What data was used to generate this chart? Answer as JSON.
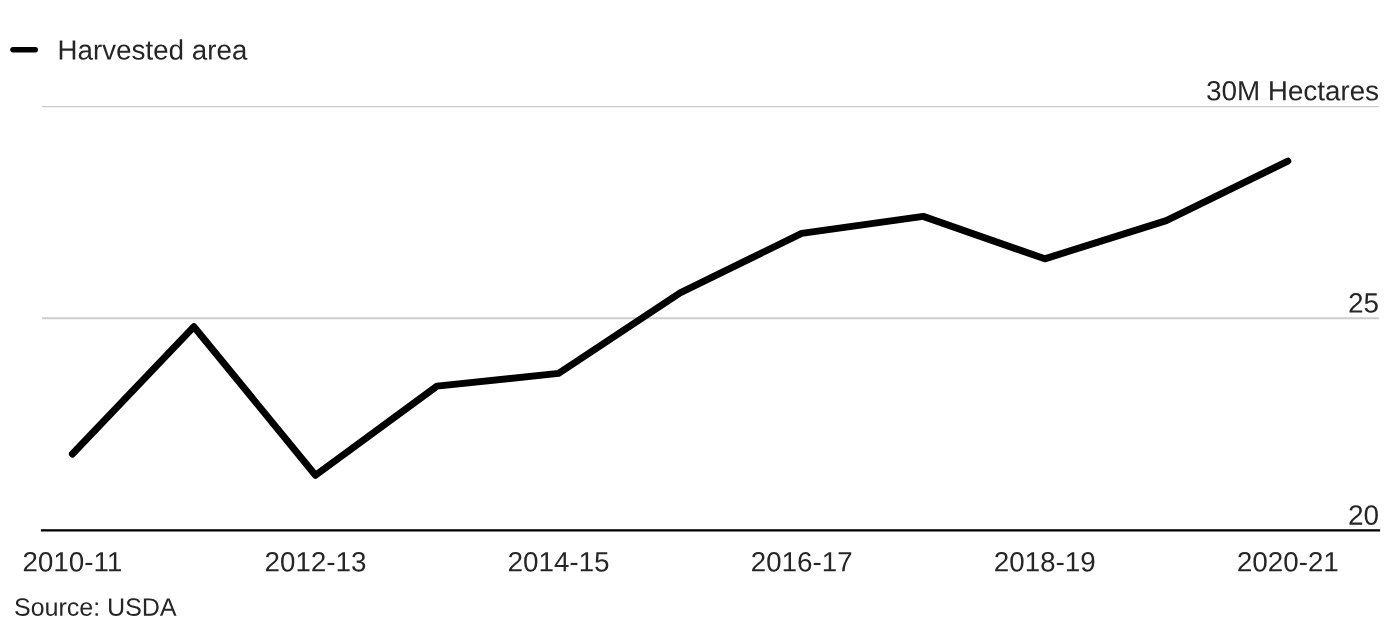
{
  "chart_data": {
    "type": "line",
    "categories": [
      "2010-11",
      null,
      "2012-13",
      null,
      "2014-15",
      null,
      "2016-17",
      null,
      "2018-19",
      null,
      "2020-21"
    ],
    "series": [
      {
        "name": "Harvested area",
        "color": "#000000",
        "values": [
          21.8,
          24.8,
          21.3,
          23.4,
          23.7,
          25.6,
          27.0,
          27.4,
          26.4,
          27.3,
          28.7
        ]
      }
    ],
    "ylim": [
      20,
      30
    ],
    "yticks": [
      20,
      25,
      {
        "value": 30,
        "label": "30M Hectares"
      }
    ],
    "grid": "y",
    "legend": "top left",
    "marker": "none",
    "line_style": "solid",
    "annotations": [
      "Source: USDA"
    ]
  }
}
